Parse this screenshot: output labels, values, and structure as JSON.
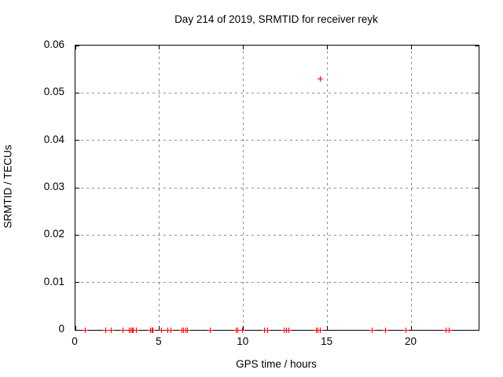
{
  "page": {
    "background_color": "#ffffff",
    "text_color": "#000000"
  },
  "chart_data": {
    "type": "scatter",
    "title": "Day 214 of 2019, SRMTID for receiver reyk",
    "xlabel": "GPS time / hours",
    "ylabel": "SRMTID / TECUs",
    "xlim": [
      0,
      24
    ],
    "ylim": [
      0,
      0.06
    ],
    "xticks": [
      0,
      5,
      10,
      15,
      20
    ],
    "xtick_labels": [
      "0",
      "5",
      "10",
      "15",
      "20"
    ],
    "yticks": [
      0,
      0.01,
      0.02,
      0.03,
      0.04,
      0.05,
      0.06
    ],
    "ytick_labels": [
      "0",
      "0.01",
      "0.02",
      "0.03",
      "0.04",
      "0.05",
      "0.06"
    ],
    "grid": true,
    "grid_style": "dashed",
    "grid_color": "#8e8e8e",
    "axis_color": "#000000",
    "legend_position": "none",
    "marker": "plus",
    "marker_color": "#ff0000",
    "series": [
      {
        "name": "SRMTID",
        "points": [
          [
            0.6,
            0
          ],
          [
            1.8,
            0
          ],
          [
            2.15,
            0
          ],
          [
            2.85,
            0
          ],
          [
            3.22,
            0
          ],
          [
            3.3,
            0
          ],
          [
            3.38,
            0
          ],
          [
            3.45,
            0
          ],
          [
            3.62,
            0
          ],
          [
            4.48,
            0
          ],
          [
            4.55,
            0
          ],
          [
            4.63,
            0
          ],
          [
            5.1,
            0
          ],
          [
            5.5,
            0
          ],
          [
            5.7,
            0
          ],
          [
            6.35,
            0
          ],
          [
            6.45,
            0
          ],
          [
            6.55,
            0
          ],
          [
            6.65,
            0
          ],
          [
            8.0,
            0
          ],
          [
            9.58,
            0
          ],
          [
            9.65,
            0
          ],
          [
            9.95,
            0
          ],
          [
            11.25,
            0
          ],
          [
            11.45,
            0
          ],
          [
            12.43,
            0
          ],
          [
            12.58,
            0
          ],
          [
            12.7,
            0
          ],
          [
            14.35,
            0
          ],
          [
            14.45,
            0
          ],
          [
            14.55,
            0
          ],
          [
            14.58,
            0.053
          ],
          [
            17.65,
            0
          ],
          [
            18.45,
            0
          ],
          [
            19.65,
            0
          ],
          [
            22.05,
            0
          ],
          [
            22.25,
            0
          ]
        ]
      }
    ]
  }
}
